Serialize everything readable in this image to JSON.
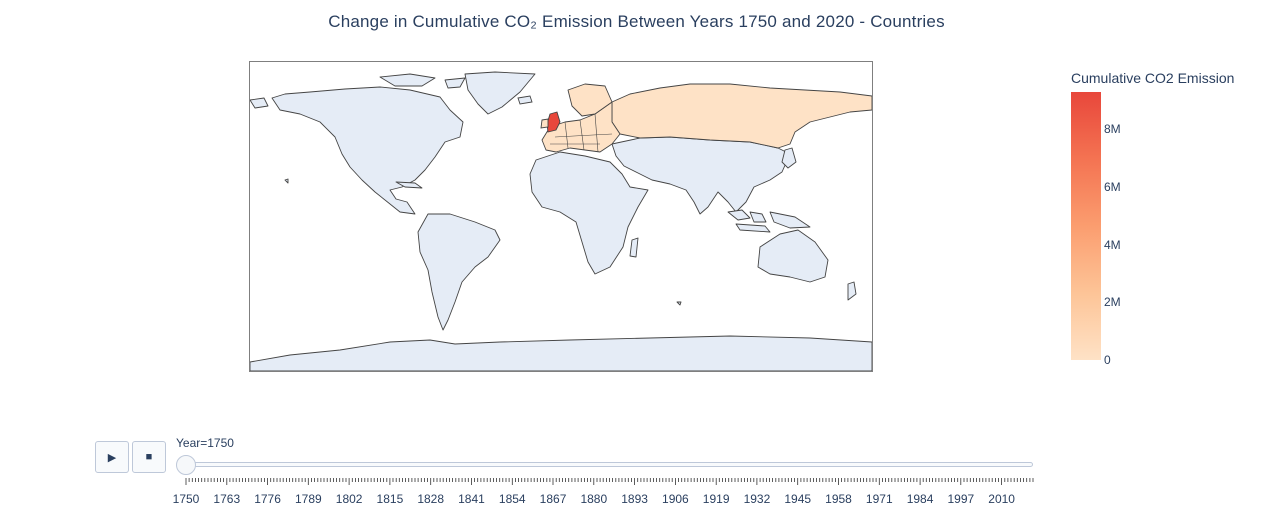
{
  "title": "Change in Cumulative CO₂ Emission Between Years 1750 and 2020 - Countries",
  "colorbar": {
    "title": "Cumulative CO2 Emission",
    "ticks": [
      "0",
      "2M",
      "4M",
      "6M",
      "8M"
    ],
    "tick_values": [
      0,
      2000000,
      4000000,
      6000000,
      8000000
    ],
    "range": [
      0,
      9300000
    ],
    "colors": [
      "#fee2c6",
      "#fdc497",
      "#fb9d6f",
      "#f47352",
      "#e8473b"
    ]
  },
  "map": {
    "projection": "equirectangular",
    "land_color": "#e5ecf6",
    "border_color": "#444444",
    "highlighted": [
      {
        "region": "United Kingdom",
        "color": "#e8473b"
      },
      {
        "region": "Europe",
        "color": "#fee2c6"
      },
      {
        "region": "Russia",
        "color": "#fee2c6"
      }
    ]
  },
  "controls": {
    "play_icon": "▶",
    "stop_icon": "■"
  },
  "slider": {
    "current_label": "Year=1750",
    "current_value": 1750,
    "min": 1750,
    "max": 2020,
    "tick_labels": [
      "1750",
      "1763",
      "1776",
      "1789",
      "1802",
      "1815",
      "1828",
      "1841",
      "1854",
      "1867",
      "1880",
      "1893",
      "1906",
      "1919",
      "1932",
      "1945",
      "1958",
      "1971",
      "1984",
      "1997",
      "2010"
    ]
  }
}
